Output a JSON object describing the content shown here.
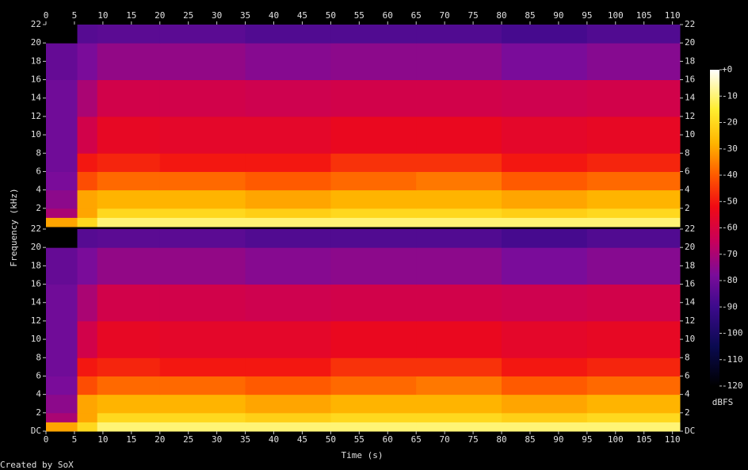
{
  "chart_data": {
    "type": "spectrogram",
    "x_label": "Time (s)",
    "y_label": "Frequency (kHz)",
    "colorbar_label": "dBFS",
    "footer": "Created by SoX",
    "xlim": [
      0,
      111.3
    ],
    "xticks": [
      0,
      5,
      10,
      15,
      20,
      25,
      30,
      35,
      40,
      45,
      50,
      55,
      60,
      65,
      70,
      75,
      80,
      85,
      90,
      95,
      100,
      105,
      110
    ],
    "ylim": [
      0,
      22
    ],
    "x_edges": [
      0,
      5.5,
      9,
      20,
      35,
      50,
      65,
      80,
      95,
      111.3
    ],
    "y_edges": [
      0,
      1,
      2,
      4,
      6,
      8,
      12,
      16,
      20,
      22
    ],
    "channels": [
      {
        "yticks": [
          2,
          4,
          6,
          8,
          10,
          12,
          14,
          16,
          18,
          20,
          22
        ],
        "z": [
          [
            -30,
            -20,
            -10,
            -10,
            -10,
            -10,
            -10,
            -10,
            -10
          ],
          [
            -70,
            -30,
            -20,
            -20,
            -22,
            -20,
            -20,
            -22,
            -20
          ],
          [
            -75,
            -30,
            -28,
            -28,
            -30,
            -28,
            -28,
            -30,
            -28
          ],
          [
            -78,
            -42,
            -38,
            -38,
            -40,
            -38,
            -36,
            -40,
            -38
          ],
          [
            -80,
            -50,
            -48,
            -50,
            -50,
            -46,
            -46,
            -50,
            -48
          ],
          [
            -80,
            -62,
            -55,
            -56,
            -56,
            -54,
            -54,
            -56,
            -55
          ],
          [
            -80,
            -70,
            -62,
            -62,
            -63,
            -62,
            -62,
            -63,
            -62
          ],
          [
            -82,
            -78,
            -74,
            -74,
            -76,
            -75,
            -75,
            -78,
            -76
          ],
          [
            -120,
            -85,
            -84,
            -84,
            -86,
            -86,
            -86,
            -88,
            -86
          ]
        ]
      },
      {
        "yticks": [
          {
            "value": 0,
            "label": "DC"
          },
          2,
          4,
          6,
          8,
          10,
          12,
          14,
          16,
          18,
          20,
          22
        ],
        "z": [
          [
            -30,
            -20,
            -10,
            -10,
            -10,
            -10,
            -10,
            -10,
            -10
          ],
          [
            -70,
            -30,
            -20,
            -20,
            -22,
            -20,
            -20,
            -22,
            -20
          ],
          [
            -75,
            -30,
            -28,
            -28,
            -30,
            -28,
            -28,
            -30,
            -28
          ],
          [
            -78,
            -42,
            -38,
            -38,
            -40,
            -38,
            -36,
            -40,
            -38
          ],
          [
            -80,
            -50,
            -48,
            -50,
            -50,
            -46,
            -46,
            -50,
            -48
          ],
          [
            -80,
            -62,
            -55,
            -56,
            -56,
            -54,
            -54,
            -56,
            -55
          ],
          [
            -80,
            -70,
            -62,
            -62,
            -63,
            -62,
            -62,
            -63,
            -62
          ],
          [
            -82,
            -78,
            -74,
            -74,
            -76,
            -75,
            -75,
            -78,
            -76
          ],
          [
            -120,
            -85,
            -84,
            -84,
            -86,
            -86,
            -86,
            -88,
            -86
          ]
        ]
      }
    ],
    "colorbar": {
      "lim": [
        -120,
        0
      ],
      "ticks": [
        {
          "value": 0,
          "label": "+0"
        },
        -10,
        -20,
        -30,
        -40,
        -50,
        -60,
        -70,
        -80,
        -90,
        -100,
        -110,
        -120
      ]
    },
    "colormap": [
      [
        -120,
        "#000000"
      ],
      [
        -105,
        "#0a0a50"
      ],
      [
        -90,
        "#3c0a8c"
      ],
      [
        -78,
        "#7a0c9a"
      ],
      [
        -65,
        "#c8005a"
      ],
      [
        -52,
        "#f00a14"
      ],
      [
        -40,
        "#ff5a00"
      ],
      [
        -28,
        "#ffb400"
      ],
      [
        -15,
        "#ffee30"
      ],
      [
        0,
        "#ffffff"
      ]
    ]
  }
}
